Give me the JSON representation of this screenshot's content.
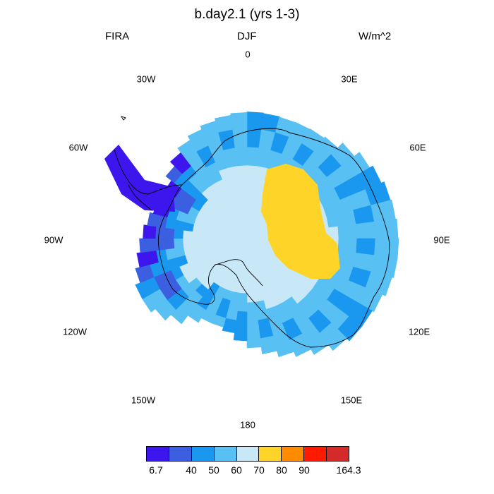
{
  "header": {
    "title": "b.day2.1 (yrs 1-3)",
    "left": "FIRA",
    "center": "DJF",
    "right": "W/m^2"
  },
  "map": {
    "projection": "south-polar-stereographic",
    "variable": "FIRA",
    "region": "Antarctica",
    "longitude_labels": [
      "0",
      "30E",
      "60E",
      "90E",
      "120E",
      "150E",
      "180",
      "150W",
      "120W",
      "90W",
      "60W",
      "30W"
    ]
  },
  "colorbar": {
    "colors": [
      "#3d16ee",
      "#3b5fe0",
      "#1a98f0",
      "#58c0f2",
      "#c8e8f8",
      "#ffd428",
      "#ff8c00",
      "#ff1a00",
      "#d42a2a"
    ],
    "labels": [
      "6.7",
      "40",
      "50",
      "60",
      "70",
      "80",
      "90",
      "164.3"
    ]
  }
}
